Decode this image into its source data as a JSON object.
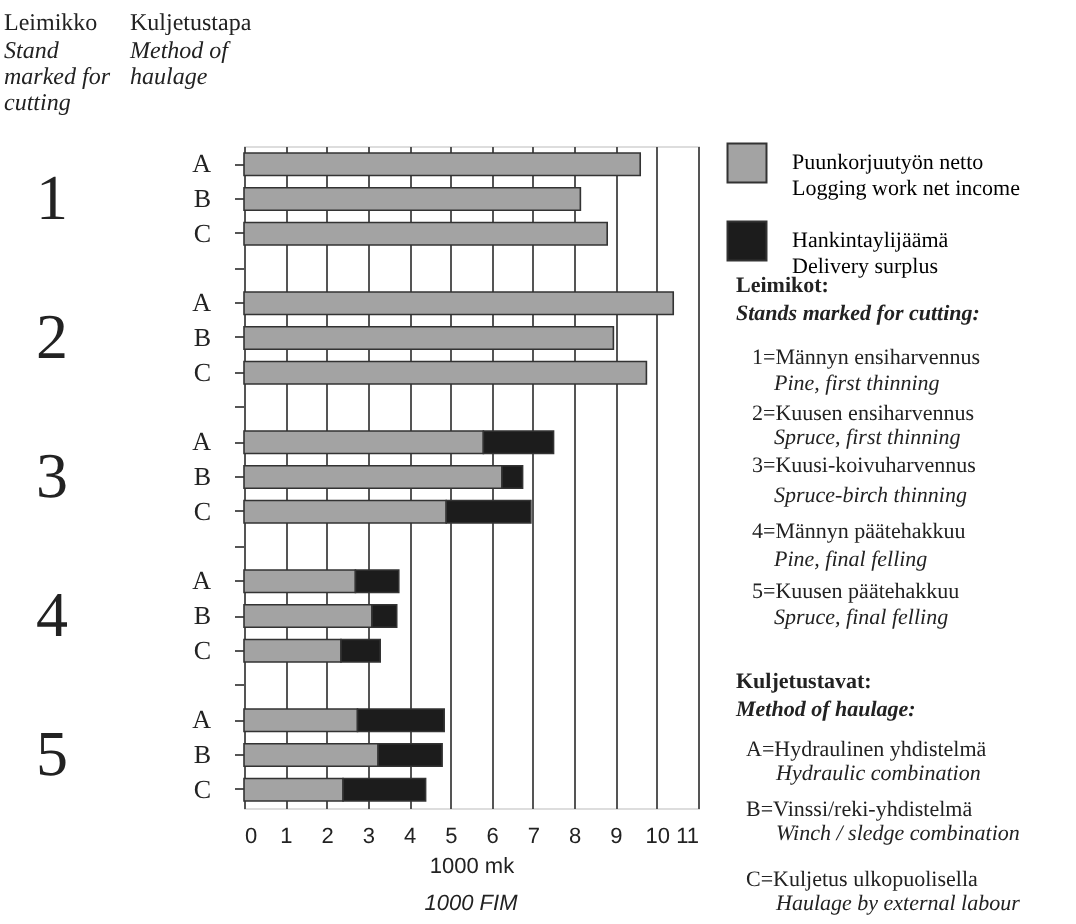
{
  "chart_data": {
    "type": "bar",
    "orientation": "horizontal",
    "stacked": true,
    "categories": [
      "A",
      "B",
      "C",
      null,
      "A",
      "B",
      "C",
      null,
      "A",
      "B",
      "C",
      null,
      "A",
      "B",
      "C",
      null,
      "A",
      "B",
      "C"
    ],
    "series": [
      {
        "name": "Puunkorjuutyön netto\nLogging work net income",
        "color": "#a3a3a3",
        "values": [
          9.6,
          8.15,
          8.8,
          null,
          10.4,
          8.95,
          9.75,
          null,
          5.8,
          6.25,
          4.9,
          null,
          2.7,
          3.1,
          2.35,
          null,
          2.75,
          3.25,
          2.4
        ]
      },
      {
        "name": "Hankintaylijäämä\nDelivery surplus",
        "color": "#1c1c1c",
        "values": [
          null,
          null,
          null,
          null,
          null,
          null,
          null,
          null,
          1.7,
          0.5,
          2.05,
          null,
          1.05,
          0.6,
          0.95,
          null,
          2.1,
          1.55,
          2.0
        ]
      }
    ],
    "xlim": [
      0,
      11
    ],
    "xticks": [
      0,
      1,
      2,
      3,
      4,
      5,
      6,
      7,
      8,
      9,
      10,
      11
    ],
    "grid": "x",
    "legend": "top right",
    "xlabel": "1000 mk",
    "annotations": [
      "Leimikko",
      "Stand\nmarked for\ncutting",
      "Kuljetustapa",
      "Method of\nhaulage",
      "1",
      "2",
      "3",
      "4",
      "5",
      "Leimikot:",
      "Stands marked for cutting:",
      "1=Männyn ensiharvennus",
      "Pine, first thinning",
      "2=Kuusen ensiharvennus",
      "Spruce, first thinning",
      "3=Kuusi-koivuharvennus",
      "Spruce-birch thinning",
      "4=Männyn päätehakkuu",
      "Pine, final felling",
      "5=Kuusen päätehakkuu",
      "Spruce, final felling",
      "Kuljetustavat:",
      "Method of haulage:",
      "A=Hydraulinen yhdistelmä",
      "Hydraulic combination",
      "B=Vinssi/reki-yhdistelmä",
      "Winch / sledge combination",
      "C=Kuljetus ulkopuolisella",
      "Haulage by external labour",
      "1000 FIM"
    ]
  }
}
